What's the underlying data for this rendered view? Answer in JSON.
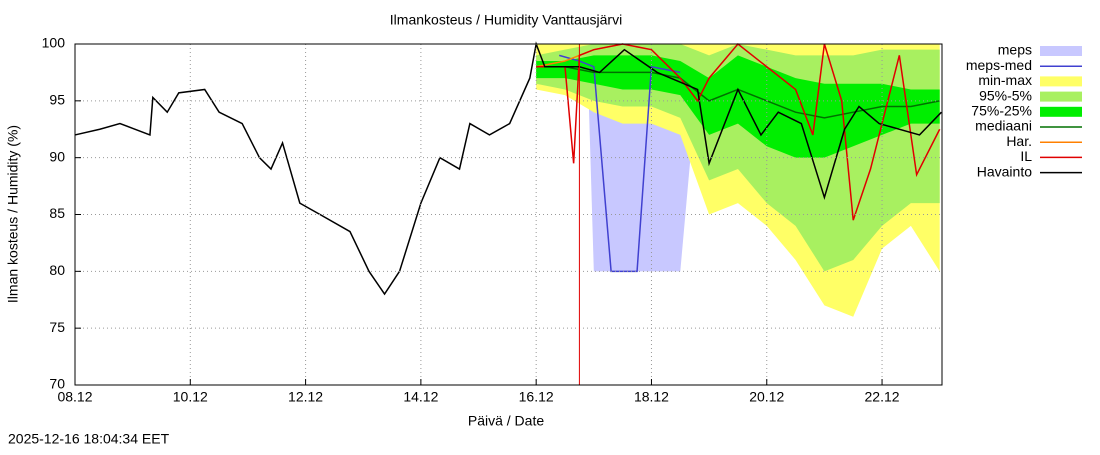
{
  "chart_data": {
    "type": "line",
    "title": "Ilmankosteus / Humidity  Vanttausjärvi",
    "x_label": "Päivä / Date",
    "y_label": "Ilman kosteus / Humidity (%)",
    "timestamp": "2025-12-16 18:04:34 EET",
    "xlim": [
      0,
      15.04
    ],
    "xticks": [
      {
        "value": 0,
        "label": "08.12"
      },
      {
        "value": 2,
        "label": "10.12"
      },
      {
        "value": 4,
        "label": "12.12"
      },
      {
        "value": 6,
        "label": "14.12"
      },
      {
        "value": 8,
        "label": "16.12"
      },
      {
        "value": 10,
        "label": "18.12"
      },
      {
        "value": 12,
        "label": "20.12"
      },
      {
        "value": 14,
        "label": "22.12"
      }
    ],
    "ylim": [
      70,
      100
    ],
    "yticks": [
      70,
      75,
      80,
      85,
      90,
      95,
      100
    ],
    "grid": true,
    "vline_x": 8.75,
    "vline_color": "#e00000",
    "series": [
      {
        "name": "meps",
        "kind": "band",
        "color": "#c8c8ff",
        "x": [
          8.4,
          8.5,
          8.9,
          9.0,
          9.5,
          10.0,
          10.5,
          10.8,
          11.0
        ],
        "lower": [
          99,
          97,
          97,
          80,
          80,
          80,
          80,
          97,
          99
        ],
        "upper": [
          100,
          100,
          100,
          100,
          100,
          100,
          100,
          100,
          100
        ]
      },
      {
        "name": "meps-med",
        "kind": "line",
        "color": "#4040d0",
        "x": [
          8.4,
          8.75,
          9.0,
          9.3,
          9.75,
          10.0,
          10.5
        ],
        "values": [
          99,
          98.5,
          98,
          80,
          80,
          98,
          97.5
        ]
      },
      {
        "name": "min-max",
        "kind": "band",
        "color": "#ffff66",
        "x": [
          8.0,
          8.5,
          9.0,
          9.5,
          10.0,
          10.5,
          11.0,
          11.5,
          12.0,
          12.5,
          13.0,
          13.5,
          14.0,
          14.5,
          15.0
        ],
        "lower": [
          96,
          95.5,
          94,
          93,
          93,
          92,
          85,
          86,
          84,
          81,
          77,
          76,
          82,
          84,
          80
        ],
        "upper": [
          100,
          100,
          100,
          100,
          100,
          100,
          100,
          100,
          100,
          100,
          100,
          100,
          100,
          100,
          100
        ]
      },
      {
        "name": "95%-5%",
        "kind": "band",
        "color": "#a8f060",
        "x": [
          8.0,
          8.5,
          9.0,
          9.5,
          10.0,
          10.5,
          11.0,
          11.5,
          12.0,
          12.5,
          13.0,
          13.5,
          14.0,
          14.5,
          15.0
        ],
        "lower": [
          96.5,
          96,
          95,
          94.5,
          94.5,
          93.5,
          88,
          89,
          86,
          84,
          80,
          81,
          84,
          86,
          86
        ],
        "upper": [
          99,
          99.5,
          100,
          100,
          100,
          100,
          99,
          100,
          99.5,
          99,
          99,
          99,
          99.5,
          99.5,
          99.5
        ]
      },
      {
        "name": "75%-25%",
        "kind": "band",
        "color": "#00ee00",
        "x": [
          8.0,
          8.5,
          9.0,
          9.5,
          10.0,
          10.5,
          11.0,
          11.5,
          12.0,
          12.5,
          13.0,
          13.5,
          14.0,
          14.5,
          15.0
        ],
        "lower": [
          97,
          97,
          96.5,
          96,
          96,
          95.5,
          92,
          93,
          91,
          90,
          90,
          91,
          92,
          93,
          93
        ],
        "upper": [
          98.5,
          98.5,
          99,
          99,
          99,
          98.5,
          97,
          99,
          98,
          97,
          96.5,
          96.5,
          96.5,
          96,
          96
        ]
      },
      {
        "name": "mediaani",
        "kind": "line",
        "color": "#007000",
        "x": [
          8.0,
          8.5,
          9.0,
          9.5,
          10.0,
          10.5,
          11.0,
          11.5,
          12.0,
          12.5,
          13.0,
          13.5,
          14.0,
          14.5,
          15.0
        ],
        "values": [
          98,
          98,
          97.5,
          97.5,
          97.5,
          97,
          95,
          96,
          95,
          94,
          93.5,
          94,
          94.5,
          94.5,
          95
        ]
      },
      {
        "name": "Har.",
        "kind": "line",
        "color": "#ff8000",
        "x": [
          8.0,
          8.5,
          9.0,
          9.5
        ],
        "values": [
          98,
          98.5,
          99.5,
          100
        ]
      },
      {
        "name": "IL",
        "kind": "line",
        "color": "#e00000",
        "x": [
          8.0,
          8.5,
          8.65,
          8.75,
          9.0,
          9.5,
          10.0,
          10.5,
          10.8,
          11.0,
          11.5,
          12.0,
          12.5,
          12.8,
          13.0,
          13.3,
          13.5,
          13.8,
          14.0,
          14.3,
          14.6,
          15.0
        ],
        "values": [
          98,
          98,
          89.5,
          99,
          99.5,
          100,
          99.5,
          97,
          95,
          97,
          100,
          98,
          96,
          92,
          100,
          95,
          84.5,
          89,
          93,
          99,
          88.5,
          92.5
        ]
      },
      {
        "name": "Havainto",
        "kind": "line",
        "color": "#000000",
        "x": [
          0,
          0.43,
          0.78,
          1.3,
          1.35,
          1.6,
          1.8,
          2.25,
          2.5,
          2.9,
          3.2,
          3.4,
          3.6,
          3.9,
          4.25,
          4.77,
          5.1,
          5.37,
          5.63,
          6.0,
          6.33,
          6.67,
          6.85,
          7.19,
          7.54,
          7.89,
          8.0,
          8.15,
          8.75,
          9.1,
          9.53,
          10.1,
          10.8,
          11.0,
          11.5,
          11.9,
          12.2,
          12.6,
          13.0,
          13.35,
          13.6,
          13.95,
          14.65,
          15.03
        ],
        "values": [
          92,
          92.5,
          93,
          92,
          95.3,
          94,
          95.7,
          96,
          94,
          93,
          90,
          89,
          91.3,
          86,
          85,
          83.5,
          80,
          78,
          80,
          86,
          90,
          89,
          93,
          92,
          93,
          97,
          100,
          98,
          98,
          97.5,
          99.5,
          97.5,
          96,
          89.5,
          96,
          92,
          94,
          93,
          86.5,
          92.5,
          94.5,
          93,
          92,
          94
        ]
      }
    ]
  }
}
